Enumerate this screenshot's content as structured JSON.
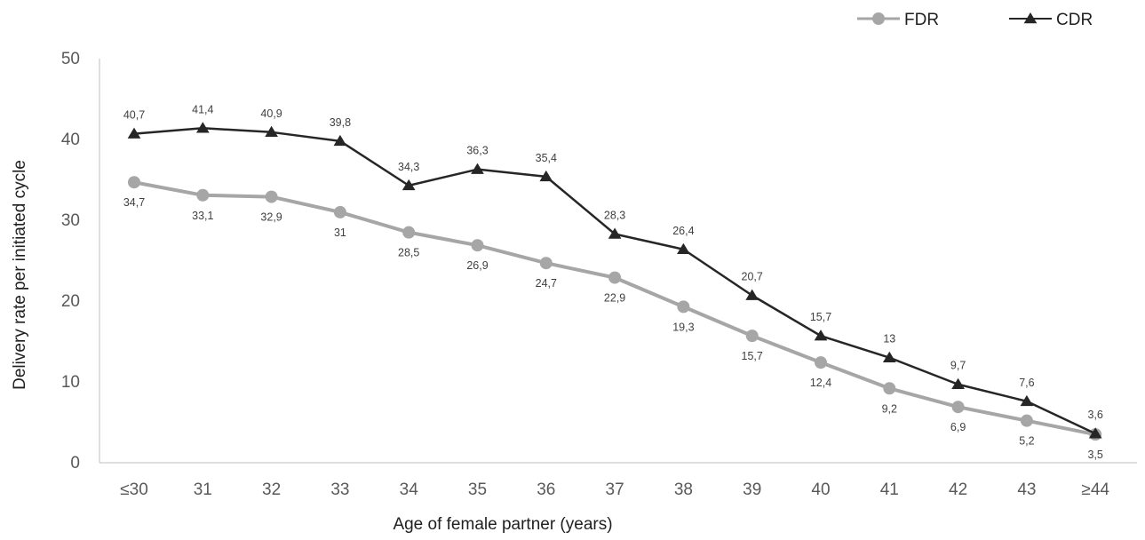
{
  "chart_data": {
    "type": "line",
    "categories": [
      "≤30",
      "31",
      "32",
      "33",
      "34",
      "35",
      "36",
      "37",
      "38",
      "39",
      "40",
      "41",
      "42",
      "43",
      "≥44"
    ],
    "series": [
      {
        "name": "FDR",
        "values": [
          34.7,
          33.1,
          32.9,
          31,
          28.5,
          26.9,
          24.7,
          22.9,
          19.3,
          15.7,
          12.4,
          9.2,
          6.9,
          5.2,
          3.5
        ],
        "labels": [
          "34,7",
          "33,1",
          "32,9",
          "31",
          "28,5",
          "26,9",
          "24,7",
          "22,9",
          "19,3",
          "15,7",
          "12,4",
          "9,2",
          "6,9",
          "5,2",
          "3,5"
        ],
        "color": "#a6a6a6",
        "marker": "circle",
        "label_position": "below"
      },
      {
        "name": "CDR",
        "values": [
          40.7,
          41.4,
          40.9,
          39.8,
          34.3,
          36.3,
          35.4,
          28.3,
          26.4,
          20.7,
          15.7,
          13,
          9.7,
          7.6,
          3.6
        ],
        "labels": [
          "40,7",
          "41,4",
          "40,9",
          "39,8",
          "34,3",
          "36,3",
          "35,4",
          "28,3",
          "26,4",
          "20,7",
          "15,7",
          "13",
          "9,7",
          "7,6",
          "3,6"
        ],
        "color": "#262626",
        "marker": "triangle",
        "label_position": "above"
      }
    ],
    "xlabel": "Age of female partner (years)",
    "ylabel": "Delivery rate per initiated cycle",
    "ylim": [
      0,
      50
    ],
    "yticks": [
      "0",
      "10",
      "20",
      "30",
      "40",
      "50"
    ],
    "grid": false,
    "legend_position": "top-right"
  }
}
